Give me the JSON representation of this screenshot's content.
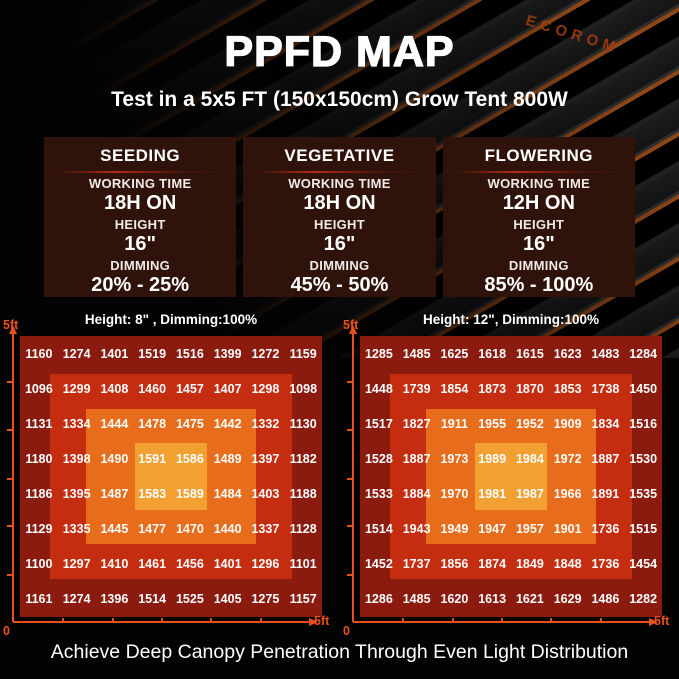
{
  "colors": {
    "background": "#000000",
    "axis_accent": "#e8511f",
    "brand_orange": "#a03c0e",
    "card_background": "#2f130b",
    "heat_scale": [
      "#8c1b0f",
      "#c52d11",
      "#e76d1c",
      "#f3a033"
    ],
    "text": "#ffffff"
  },
  "header": {
    "brand": "ECOROM",
    "title": "PPFD MAP",
    "subtitle": "Test in a 5x5 FT (150x150cm) Grow Tent 800W"
  },
  "stage_cards": [
    {
      "title": "SEEDING",
      "working_time_label": "WORKING TIME",
      "working_time": "18H ON",
      "height_label": "HEIGHT",
      "height": "16\"",
      "dimming_label": "DIMMING",
      "dimming": "20% - 25%"
    },
    {
      "title": "VEGETATIVE",
      "working_time_label": "WORKING TIME",
      "working_time": "18H ON",
      "height_label": "HEIGHT",
      "height": "16\"",
      "dimming_label": "DIMMING",
      "dimming": "45% - 50%"
    },
    {
      "title": "FLOWERING",
      "working_time_label": "WORKING TIME",
      "working_time": "12H ON",
      "height_label": "HEIGHT",
      "height": "16\"",
      "dimming_label": "DIMMING",
      "dimming": "85% - 100%"
    }
  ],
  "chart_data": [
    {
      "type": "heatmap",
      "title": "Height: 8\" , Dimming:100%",
      "x_axis": {
        "origin_label": "0",
        "end_label": "5ft",
        "range_ft": [
          0,
          5
        ]
      },
      "y_axis": {
        "end_label": "5ft",
        "range_ft": [
          0,
          5
        ]
      },
      "grid_size": "8x8",
      "values": [
        [
          1160,
          1274,
          1401,
          1519,
          1516,
          1399,
          1272,
          1159
        ],
        [
          1096,
          1299,
          1408,
          1460,
          1457,
          1407,
          1298,
          1098
        ],
        [
          1131,
          1334,
          1444,
          1478,
          1475,
          1442,
          1332,
          1130
        ],
        [
          1180,
          1398,
          1490,
          1591,
          1586,
          1489,
          1397,
          1182
        ],
        [
          1186,
          1395,
          1487,
          1583,
          1589,
          1484,
          1403,
          1188
        ],
        [
          1129,
          1335,
          1445,
          1477,
          1470,
          1440,
          1337,
          1128
        ],
        [
          1100,
          1297,
          1410,
          1461,
          1456,
          1401,
          1296,
          1101
        ],
        [
          1161,
          1274,
          1396,
          1514,
          1525,
          1405,
          1275,
          1157
        ]
      ]
    },
    {
      "type": "heatmap",
      "title": "Height: 12\", Dimming:100%",
      "x_axis": {
        "origin_label": "0",
        "end_label": "5ft",
        "range_ft": [
          0,
          5
        ]
      },
      "y_axis": {
        "end_label": "5ft",
        "range_ft": [
          0,
          5
        ]
      },
      "grid_size": "8x8",
      "values": [
        [
          1285,
          1485,
          1625,
          1618,
          1615,
          1623,
          1483,
          1284
        ],
        [
          1448,
          1739,
          1854,
          1873,
          1870,
          1853,
          1738,
          1450
        ],
        [
          1517,
          1827,
          1911,
          1955,
          1952,
          1909,
          1834,
          1516
        ],
        [
          1528,
          1887,
          1973,
          1989,
          1984,
          1972,
          1887,
          1530
        ],
        [
          1533,
          1884,
          1970,
          1981,
          1987,
          1966,
          1891,
          1535
        ],
        [
          1514,
          1943,
          1949,
          1947,
          1957,
          1901,
          1736,
          1515
        ],
        [
          1452,
          1737,
          1856,
          1874,
          1849,
          1848,
          1736,
          1454
        ],
        [
          1286,
          1485,
          1620,
          1613,
          1621,
          1629,
          1486,
          1282
        ]
      ]
    }
  ],
  "footer": {
    "text": "Achieve Deep Canopy Penetration Through Even Light Distribution"
  }
}
